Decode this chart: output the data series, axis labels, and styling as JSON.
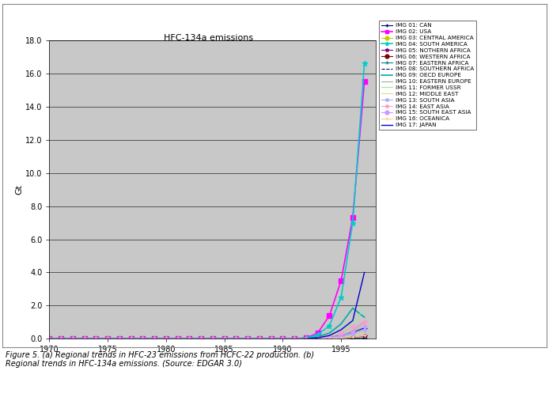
{
  "title": "HFC-134a emissions",
  "ylabel": "Gt",
  "caption": "Figure 5. (a) Regional trends in HFC-23 emissions from HCFC-22 production. (b)\nRegional trends in HFC-134a emissions. (Source: EDGAR 3.0)",
  "xlim": [
    1970,
    1998
  ],
  "ylim": [
    0,
    18.0
  ],
  "xticks": [
    1970,
    1975,
    1980,
    1985,
    1990,
    1995
  ],
  "yticks": [
    0.0,
    2.0,
    4.0,
    6.0,
    8.0,
    10.0,
    12.0,
    14.0,
    16.0,
    18.0
  ],
  "plot_bg": "#c8c8c8",
  "fig_bg": "#ffffff",
  "outer_box_color": "#888888",
  "series": [
    {
      "label": "IMG 01: CAN",
      "color": "#000080",
      "marker": "+",
      "linestyle": "-",
      "linewidth": 0.8,
      "markersize": 4,
      "data_x": [
        1970,
        1971,
        1972,
        1973,
        1974,
        1975,
        1976,
        1977,
        1978,
        1979,
        1980,
        1981,
        1982,
        1983,
        1984,
        1985,
        1986,
        1987,
        1988,
        1989,
        1990,
        1991,
        1992,
        1993,
        1994,
        1995,
        1996,
        1997
      ],
      "data_y": [
        0,
        0,
        0,
        0,
        0,
        0,
        0,
        0,
        0,
        0,
        0,
        0,
        0,
        0,
        0,
        0,
        0,
        0,
        0,
        0,
        0,
        0,
        0.01,
        0.04,
        0.09,
        0.2,
        0.4,
        0.65
      ]
    },
    {
      "label": "IMG 02: USA",
      "color": "#ff00ff",
      "marker": "s",
      "linestyle": "-",
      "linewidth": 1.2,
      "markersize": 4,
      "data_x": [
        1970,
        1971,
        1972,
        1973,
        1974,
        1975,
        1976,
        1977,
        1978,
        1979,
        1980,
        1981,
        1982,
        1983,
        1984,
        1985,
        1986,
        1987,
        1988,
        1989,
        1990,
        1991,
        1992,
        1993,
        1994,
        1995,
        1996,
        1997
      ],
      "data_y": [
        0,
        0,
        0,
        0,
        0,
        0,
        0,
        0,
        0,
        0,
        0,
        0,
        0,
        0,
        0,
        0,
        0,
        0,
        0,
        0,
        0,
        0.01,
        0.05,
        0.35,
        1.4,
        3.5,
        7.3,
        15.5
      ]
    },
    {
      "label": "IMG 03: CENTRAL AMERICA",
      "color": "#cccc00",
      "marker": "o",
      "linestyle": "-",
      "linewidth": 0.8,
      "markersize": 3,
      "data_x": [
        1970,
        1971,
        1972,
        1973,
        1974,
        1975,
        1976,
        1977,
        1978,
        1979,
        1980,
        1981,
        1982,
        1983,
        1984,
        1985,
        1986,
        1987,
        1988,
        1989,
        1990,
        1991,
        1992,
        1993,
        1994,
        1995,
        1996,
        1997
      ],
      "data_y": [
        0,
        0,
        0,
        0,
        0,
        0,
        0,
        0,
        0,
        0,
        0,
        0,
        0,
        0,
        0,
        0,
        0,
        0,
        0,
        0,
        0,
        0,
        0,
        0,
        0.01,
        0.02,
        0.04,
        0.07
      ]
    },
    {
      "label": "IMG 04: SOUTH AMERICA",
      "color": "#00cccc",
      "marker": "*",
      "linestyle": "-",
      "linewidth": 1.2,
      "markersize": 5,
      "data_x": [
        1970,
        1971,
        1972,
        1973,
        1974,
        1975,
        1976,
        1977,
        1978,
        1979,
        1980,
        1981,
        1982,
        1983,
        1984,
        1985,
        1986,
        1987,
        1988,
        1989,
        1990,
        1991,
        1992,
        1993,
        1994,
        1995,
        1996,
        1997
      ],
      "data_y": [
        0,
        0,
        0,
        0,
        0,
        0,
        0,
        0,
        0,
        0,
        0,
        0,
        0,
        0,
        0,
        0,
        0,
        0,
        0,
        0,
        0,
        0.01,
        0.05,
        0.25,
        0.8,
        2.5,
        7.0,
        16.6
      ]
    },
    {
      "label": "IMG 05: NOTHERN AFRICA",
      "color": "#800080",
      "marker": "*",
      "linestyle": "-",
      "linewidth": 0.8,
      "markersize": 4,
      "data_x": [
        1970,
        1971,
        1972,
        1973,
        1974,
        1975,
        1976,
        1977,
        1978,
        1979,
        1980,
        1981,
        1982,
        1983,
        1984,
        1985,
        1986,
        1987,
        1988,
        1989,
        1990,
        1991,
        1992,
        1993,
        1994,
        1995,
        1996,
        1997
      ],
      "data_y": [
        0,
        0,
        0,
        0,
        0,
        0,
        0,
        0,
        0,
        0,
        0,
        0,
        0,
        0,
        0,
        0,
        0,
        0,
        0,
        0,
        0,
        0,
        0,
        0.01,
        0.02,
        0.05,
        0.1,
        0.18
      ]
    },
    {
      "label": "IMG 06: WESTERN AFRICA",
      "color": "#800000",
      "marker": "o",
      "linestyle": "-",
      "linewidth": 0.8,
      "markersize": 3,
      "data_x": [
        1970,
        1971,
        1972,
        1973,
        1974,
        1975,
        1976,
        1977,
        1978,
        1979,
        1980,
        1981,
        1982,
        1983,
        1984,
        1985,
        1986,
        1987,
        1988,
        1989,
        1990,
        1991,
        1992,
        1993,
        1994,
        1995,
        1996,
        1997
      ],
      "data_y": [
        0,
        0,
        0,
        0,
        0,
        0,
        0,
        0,
        0,
        0,
        0,
        0,
        0,
        0,
        0,
        0,
        0,
        0,
        0,
        0,
        0,
        0,
        0,
        0,
        0.005,
        0.01,
        0.02,
        0.04
      ]
    },
    {
      "label": "IMG 07: EASTERN AFRICA",
      "color": "#008080",
      "marker": "+",
      "linestyle": "-",
      "linewidth": 0.8,
      "markersize": 4,
      "data_x": [
        1970,
        1971,
        1972,
        1973,
        1974,
        1975,
        1976,
        1977,
        1978,
        1979,
        1980,
        1981,
        1982,
        1983,
        1984,
        1985,
        1986,
        1987,
        1988,
        1989,
        1990,
        1991,
        1992,
        1993,
        1994,
        1995,
        1996,
        1997
      ],
      "data_y": [
        0,
        0,
        0,
        0,
        0,
        0,
        0,
        0,
        0,
        0,
        0,
        0,
        0,
        0,
        0,
        0,
        0,
        0,
        0,
        0,
        0,
        0,
        0,
        0,
        0.003,
        0.007,
        0.015,
        0.03
      ]
    },
    {
      "label": "IMG 08: SOUTHERN AFRICA",
      "color": "#00008b",
      "marker": "None",
      "linestyle": "--",
      "linewidth": 0.8,
      "markersize": 4,
      "data_x": [
        1970,
        1971,
        1972,
        1973,
        1974,
        1975,
        1976,
        1977,
        1978,
        1979,
        1980,
        1981,
        1982,
        1983,
        1984,
        1985,
        1986,
        1987,
        1988,
        1989,
        1990,
        1991,
        1992,
        1993,
        1994,
        1995,
        1996,
        1997
      ],
      "data_y": [
        0,
        0,
        0,
        0,
        0,
        0,
        0,
        0,
        0,
        0,
        0,
        0,
        0,
        0,
        0,
        0,
        0,
        0,
        0,
        0,
        0,
        0,
        0,
        0,
        0.003,
        0.008,
        0.018,
        0.04
      ]
    },
    {
      "label": "IMG 09: OECD EUROPE",
      "color": "#00aaaa",
      "marker": "None",
      "linestyle": "-",
      "linewidth": 1.2,
      "markersize": 4,
      "data_x": [
        1970,
        1971,
        1972,
        1973,
        1974,
        1975,
        1976,
        1977,
        1978,
        1979,
        1980,
        1981,
        1982,
        1983,
        1984,
        1985,
        1986,
        1987,
        1988,
        1989,
        1990,
        1991,
        1992,
        1993,
        1994,
        1995,
        1996,
        1997
      ],
      "data_y": [
        0,
        0,
        0,
        0,
        0,
        0,
        0,
        0,
        0,
        0,
        0,
        0,
        0,
        0,
        0,
        0,
        0,
        0,
        0,
        0,
        0,
        0.01,
        0.04,
        0.12,
        0.35,
        0.9,
        1.85,
        1.3
      ]
    },
    {
      "label": "IMG 10: EASTERN EUROPE",
      "color": "#aaaaaa",
      "marker": "None",
      "linestyle": "-",
      "linewidth": 0.8,
      "markersize": 3,
      "data_x": [
        1970,
        1971,
        1972,
        1973,
        1974,
        1975,
        1976,
        1977,
        1978,
        1979,
        1980,
        1981,
        1982,
        1983,
        1984,
        1985,
        1986,
        1987,
        1988,
        1989,
        1990,
        1991,
        1992,
        1993,
        1994,
        1995,
        1996,
        1997
      ],
      "data_y": [
        0,
        0,
        0,
        0,
        0,
        0,
        0,
        0,
        0,
        0,
        0,
        0,
        0,
        0,
        0,
        0,
        0,
        0,
        0,
        0,
        0,
        0,
        0.01,
        0.03,
        0.08,
        0.2,
        0.5,
        1.0
      ]
    },
    {
      "label": "IMG 11: FORMER USSR",
      "color": "#90ee90",
      "marker": "None",
      "linestyle": "-",
      "linewidth": 0.8,
      "markersize": 3,
      "data_x": [
        1970,
        1971,
        1972,
        1973,
        1974,
        1975,
        1976,
        1977,
        1978,
        1979,
        1980,
        1981,
        1982,
        1983,
        1984,
        1985,
        1986,
        1987,
        1988,
        1989,
        1990,
        1991,
        1992,
        1993,
        1994,
        1995,
        1996,
        1997
      ],
      "data_y": [
        0,
        0,
        0,
        0,
        0,
        0,
        0,
        0,
        0,
        0,
        0,
        0,
        0,
        0,
        0,
        0,
        0,
        0,
        0,
        0,
        0,
        0,
        0.01,
        0.05,
        0.15,
        0.4,
        0.9,
        1.85
      ]
    },
    {
      "label": "IMG 12: MIDDLE EAST",
      "color": "#dddd88",
      "marker": "None",
      "linestyle": "-",
      "linewidth": 0.8,
      "markersize": 3,
      "data_x": [
        1970,
        1971,
        1972,
        1973,
        1974,
        1975,
        1976,
        1977,
        1978,
        1979,
        1980,
        1981,
        1982,
        1983,
        1984,
        1985,
        1986,
        1987,
        1988,
        1989,
        1990,
        1991,
        1992,
        1993,
        1994,
        1995,
        1996,
        1997
      ],
      "data_y": [
        0,
        0,
        0,
        0,
        0,
        0,
        0,
        0,
        0,
        0,
        0,
        0,
        0,
        0,
        0,
        0,
        0,
        0,
        0,
        0,
        0,
        0,
        0,
        0.01,
        0.03,
        0.08,
        0.18,
        0.35
      ]
    },
    {
      "label": "IMG 13: SOUTH ASIA",
      "color": "#aaaaff",
      "marker": "*",
      "linestyle": "-",
      "linewidth": 0.8,
      "markersize": 3,
      "data_x": [
        1970,
        1971,
        1972,
        1973,
        1974,
        1975,
        1976,
        1977,
        1978,
        1979,
        1980,
        1981,
        1982,
        1983,
        1984,
        1985,
        1986,
        1987,
        1988,
        1989,
        1990,
        1991,
        1992,
        1993,
        1994,
        1995,
        1996,
        1997
      ],
      "data_y": [
        0,
        0,
        0,
        0,
        0,
        0,
        0,
        0,
        0,
        0,
        0,
        0,
        0,
        0,
        0,
        0,
        0,
        0,
        0,
        0,
        0,
        0,
        0,
        0.01,
        0.04,
        0.12,
        0.28,
        0.55
      ]
    },
    {
      "label": "IMG 14: EAST ASIA",
      "color": "#ff99cc",
      "marker": "*",
      "linestyle": "-",
      "linewidth": 0.8,
      "markersize": 4,
      "data_x": [
        1970,
        1971,
        1972,
        1973,
        1974,
        1975,
        1976,
        1977,
        1978,
        1979,
        1980,
        1981,
        1982,
        1983,
        1984,
        1985,
        1986,
        1987,
        1988,
        1989,
        1990,
        1991,
        1992,
        1993,
        1994,
        1995,
        1996,
        1997
      ],
      "data_y": [
        0,
        0,
        0,
        0,
        0,
        0,
        0,
        0,
        0,
        0,
        0,
        0,
        0,
        0,
        0,
        0,
        0,
        0,
        0,
        0,
        0,
        0,
        0.01,
        0.04,
        0.12,
        0.35,
        0.75,
        1.0
      ]
    },
    {
      "label": "IMG 15: SOUTH EAST ASIA",
      "color": "#cc99ff",
      "marker": "o",
      "linestyle": "-",
      "linewidth": 0.8,
      "markersize": 3,
      "data_x": [
        1970,
        1971,
        1972,
        1973,
        1974,
        1975,
        1976,
        1977,
        1978,
        1979,
        1980,
        1981,
        1982,
        1983,
        1984,
        1985,
        1986,
        1987,
        1988,
        1989,
        1990,
        1991,
        1992,
        1993,
        1994,
        1995,
        1996,
        1997
      ],
      "data_y": [
        0,
        0,
        0,
        0,
        0,
        0,
        0,
        0,
        0,
        0,
        0,
        0,
        0,
        0,
        0,
        0,
        0,
        0,
        0,
        0,
        0,
        0,
        0,
        0.02,
        0.06,
        0.18,
        0.42,
        0.75
      ]
    },
    {
      "label": "IMG 16: OCEANICA",
      "color": "#ffcc99",
      "marker": "+",
      "linestyle": "-",
      "linewidth": 0.8,
      "markersize": 3,
      "data_x": [
        1970,
        1971,
        1972,
        1973,
        1974,
        1975,
        1976,
        1977,
        1978,
        1979,
        1980,
        1981,
        1982,
        1983,
        1984,
        1985,
        1986,
        1987,
        1988,
        1989,
        1990,
        1991,
        1992,
        1993,
        1994,
        1995,
        1996,
        1997
      ],
      "data_y": [
        0,
        0,
        0,
        0,
        0,
        0,
        0,
        0,
        0,
        0,
        0,
        0,
        0,
        0,
        0,
        0,
        0,
        0,
        0,
        0,
        0,
        0,
        0,
        0.005,
        0.015,
        0.04,
        0.1,
        0.2
      ]
    },
    {
      "label": "IMG 17: JAPAN",
      "color": "#0000cc",
      "marker": "None",
      "linestyle": "-",
      "linewidth": 1.0,
      "markersize": 4,
      "data_x": [
        1970,
        1971,
        1972,
        1973,
        1974,
        1975,
        1976,
        1977,
        1978,
        1979,
        1980,
        1981,
        1982,
        1983,
        1984,
        1985,
        1986,
        1987,
        1988,
        1989,
        1990,
        1991,
        1992,
        1993,
        1994,
        1995,
        1996,
        1997
      ],
      "data_y": [
        0,
        0,
        0,
        0,
        0,
        0,
        0,
        0,
        0,
        0,
        0,
        0,
        0,
        0,
        0,
        0,
        0,
        0,
        0,
        0,
        0,
        0,
        0.01,
        0.06,
        0.2,
        0.55,
        1.1,
        4.0
      ]
    }
  ]
}
